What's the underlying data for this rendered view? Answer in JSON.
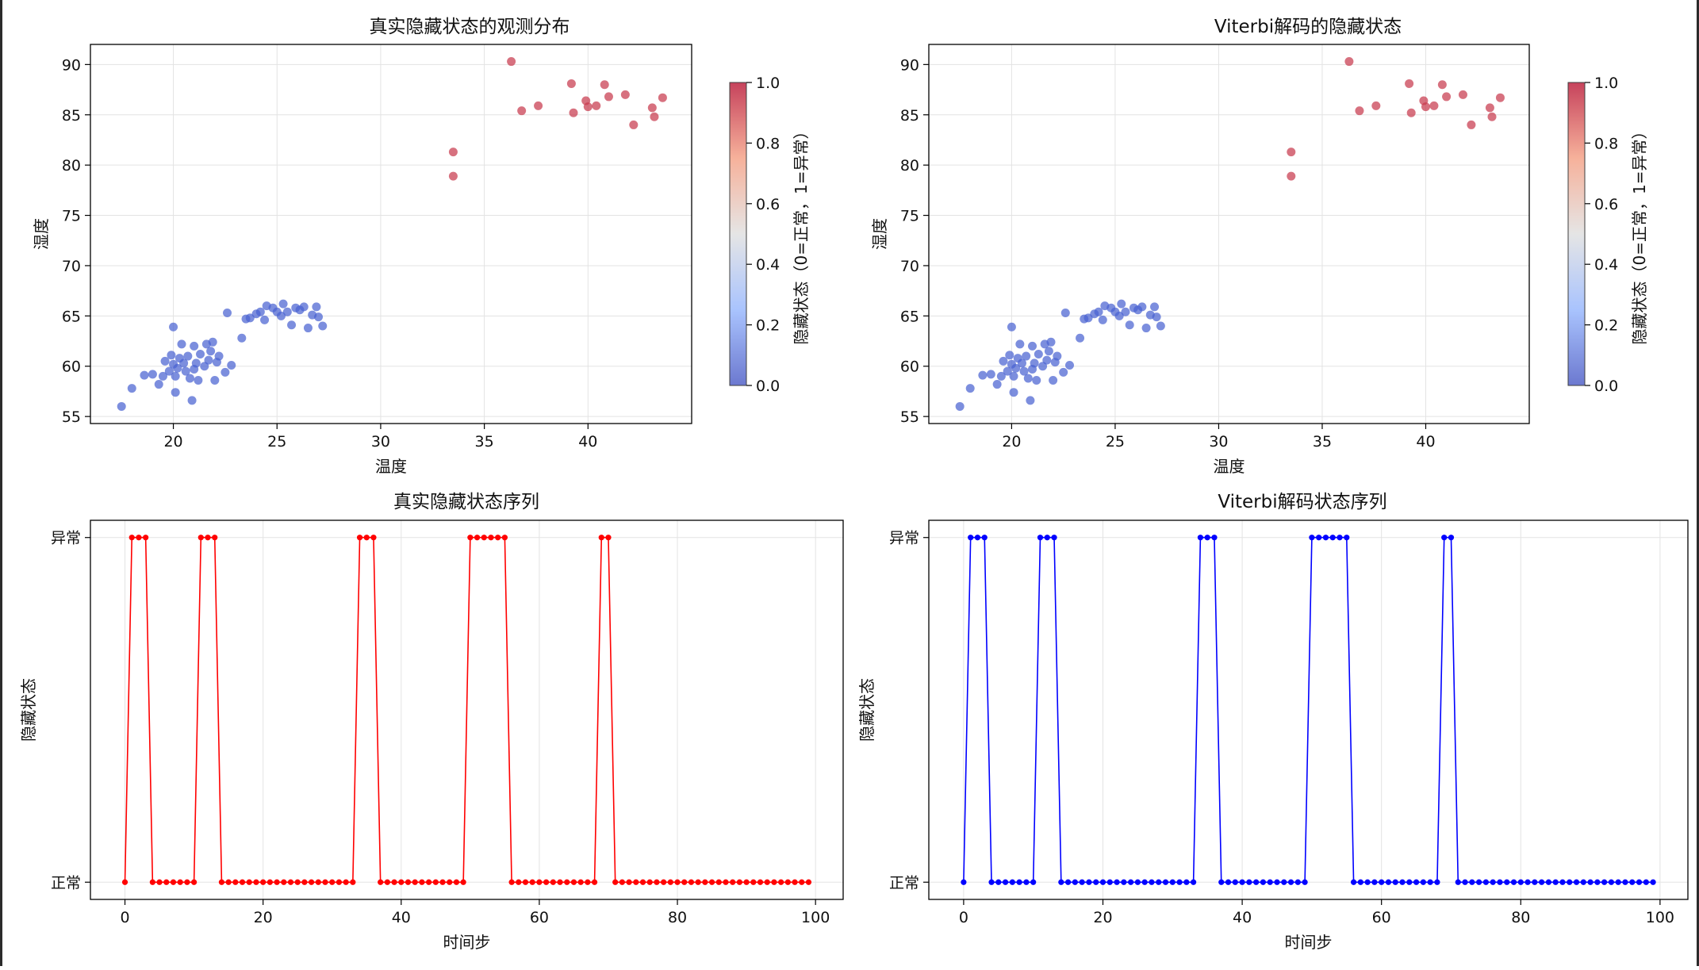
{
  "chart_data": [
    {
      "id": "scatter-true",
      "type": "scatter",
      "title": "真实隐藏状态的观测分布",
      "xlabel": "温度",
      "ylabel": "湿度",
      "xlim": [
        16,
        45
      ],
      "ylim": [
        54.3,
        92
      ],
      "xticks": [
        20,
        25,
        30,
        35,
        40
      ],
      "yticks": [
        55,
        60,
        65,
        70,
        75,
        80,
        85,
        90
      ],
      "grid": true,
      "colorbar": {
        "label": "隐藏状态（0=正常，1=异常）",
        "range": [
          0,
          1
        ],
        "ticks": [
          "0.0",
          "0.2",
          "0.4",
          "0.6",
          "0.8",
          "1.0"
        ]
      },
      "colors": {
        "normal": "#4a63d1",
        "abnormal": "#c73a4e"
      },
      "points": [
        {
          "x": 17.5,
          "y": 56.0,
          "s": 0
        },
        {
          "x": 18.0,
          "y": 57.8,
          "s": 0
        },
        {
          "x": 18.6,
          "y": 59.1,
          "s": 0
        },
        {
          "x": 19.0,
          "y": 59.2,
          "s": 0
        },
        {
          "x": 19.3,
          "y": 58.2,
          "s": 0
        },
        {
          "x": 19.5,
          "y": 59.0,
          "s": 0
        },
        {
          "x": 19.6,
          "y": 60.5,
          "s": 0
        },
        {
          "x": 19.8,
          "y": 59.5,
          "s": 0
        },
        {
          "x": 19.9,
          "y": 61.1,
          "s": 0
        },
        {
          "x": 20.0,
          "y": 63.9,
          "s": 0
        },
        {
          "x": 20.0,
          "y": 60.2,
          "s": 0
        },
        {
          "x": 20.1,
          "y": 59.0,
          "s": 0
        },
        {
          "x": 20.1,
          "y": 57.4,
          "s": 0
        },
        {
          "x": 20.2,
          "y": 59.8,
          "s": 0
        },
        {
          "x": 20.3,
          "y": 60.8,
          "s": 0
        },
        {
          "x": 20.4,
          "y": 62.2,
          "s": 0
        },
        {
          "x": 20.5,
          "y": 60.3,
          "s": 0
        },
        {
          "x": 20.6,
          "y": 59.5,
          "s": 0
        },
        {
          "x": 20.7,
          "y": 61.0,
          "s": 0
        },
        {
          "x": 20.8,
          "y": 58.8,
          "s": 0
        },
        {
          "x": 20.9,
          "y": 56.6,
          "s": 0
        },
        {
          "x": 21.0,
          "y": 59.7,
          "s": 0
        },
        {
          "x": 21.0,
          "y": 62.0,
          "s": 0
        },
        {
          "x": 21.1,
          "y": 60.3,
          "s": 0
        },
        {
          "x": 21.2,
          "y": 58.6,
          "s": 0
        },
        {
          "x": 21.3,
          "y": 61.2,
          "s": 0
        },
        {
          "x": 21.5,
          "y": 60.0,
          "s": 0
        },
        {
          "x": 21.6,
          "y": 62.2,
          "s": 0
        },
        {
          "x": 21.7,
          "y": 60.6,
          "s": 0
        },
        {
          "x": 21.8,
          "y": 61.5,
          "s": 0
        },
        {
          "x": 21.9,
          "y": 62.4,
          "s": 0
        },
        {
          "x": 22.0,
          "y": 58.6,
          "s": 0
        },
        {
          "x": 22.1,
          "y": 60.4,
          "s": 0
        },
        {
          "x": 22.2,
          "y": 61.0,
          "s": 0
        },
        {
          "x": 22.5,
          "y": 59.4,
          "s": 0
        },
        {
          "x": 22.6,
          "y": 65.3,
          "s": 0
        },
        {
          "x": 22.8,
          "y": 60.1,
          "s": 0
        },
        {
          "x": 23.3,
          "y": 62.8,
          "s": 0
        },
        {
          "x": 23.5,
          "y": 64.7,
          "s": 0
        },
        {
          "x": 23.7,
          "y": 64.8,
          "s": 0
        },
        {
          "x": 24.0,
          "y": 65.2,
          "s": 0
        },
        {
          "x": 24.2,
          "y": 65.4,
          "s": 0
        },
        {
          "x": 24.4,
          "y": 64.6,
          "s": 0
        },
        {
          "x": 24.5,
          "y": 66.0,
          "s": 0
        },
        {
          "x": 24.8,
          "y": 65.8,
          "s": 0
        },
        {
          "x": 25.0,
          "y": 65.4,
          "s": 0
        },
        {
          "x": 25.2,
          "y": 65.0,
          "s": 0
        },
        {
          "x": 25.3,
          "y": 66.2,
          "s": 0
        },
        {
          "x": 25.5,
          "y": 65.4,
          "s": 0
        },
        {
          "x": 25.7,
          "y": 64.1,
          "s": 0
        },
        {
          "x": 25.9,
          "y": 65.8,
          "s": 0
        },
        {
          "x": 26.1,
          "y": 65.6,
          "s": 0
        },
        {
          "x": 26.3,
          "y": 65.9,
          "s": 0
        },
        {
          "x": 26.5,
          "y": 63.8,
          "s": 0
        },
        {
          "x": 26.7,
          "y": 65.1,
          "s": 0
        },
        {
          "x": 26.9,
          "y": 65.9,
          "s": 0
        },
        {
          "x": 27.0,
          "y": 64.9,
          "s": 0
        },
        {
          "x": 27.2,
          "y": 64.0,
          "s": 0
        },
        {
          "x": 33.5,
          "y": 81.3,
          "s": 1
        },
        {
          "x": 33.5,
          "y": 78.9,
          "s": 1
        },
        {
          "x": 36.3,
          "y": 90.3,
          "s": 1
        },
        {
          "x": 36.8,
          "y": 85.4,
          "s": 1
        },
        {
          "x": 37.6,
          "y": 85.9,
          "s": 1
        },
        {
          "x": 39.2,
          "y": 88.1,
          "s": 1
        },
        {
          "x": 39.3,
          "y": 85.2,
          "s": 1
        },
        {
          "x": 39.9,
          "y": 86.4,
          "s": 1
        },
        {
          "x": 40.0,
          "y": 85.8,
          "s": 1
        },
        {
          "x": 40.4,
          "y": 85.9,
          "s": 1
        },
        {
          "x": 40.8,
          "y": 88.0,
          "s": 1
        },
        {
          "x": 41.0,
          "y": 86.8,
          "s": 1
        },
        {
          "x": 41.8,
          "y": 87.0,
          "s": 1
        },
        {
          "x": 42.2,
          "y": 84.0,
          "s": 1
        },
        {
          "x": 43.1,
          "y": 85.7,
          "s": 1
        },
        {
          "x": 43.2,
          "y": 84.8,
          "s": 1
        },
        {
          "x": 43.6,
          "y": 86.7,
          "s": 1
        }
      ]
    },
    {
      "id": "scatter-viterbi",
      "type": "scatter",
      "title": "Viterbi解码的隐藏状态",
      "xlabel": "温度",
      "ylabel": "湿度",
      "xlim": [
        16,
        45
      ],
      "ylim": [
        54.3,
        92
      ],
      "xticks": [
        20,
        25,
        30,
        35,
        40
      ],
      "yticks": [
        55,
        60,
        65,
        70,
        75,
        80,
        85,
        90
      ],
      "grid": true,
      "colorbar": {
        "label": "隐藏状态（0=正常，1=异常）",
        "range": [
          0,
          1
        ],
        "ticks": [
          "0.0",
          "0.2",
          "0.4",
          "0.6",
          "0.8",
          "1.0"
        ]
      },
      "colors": {
        "normal": "#4a63d1",
        "abnormal": "#c73a4e"
      },
      "points": [
        {
          "x": 17.5,
          "y": 56.0,
          "s": 0
        },
        {
          "x": 18.0,
          "y": 57.8,
          "s": 0
        },
        {
          "x": 18.6,
          "y": 59.1,
          "s": 0
        },
        {
          "x": 19.0,
          "y": 59.2,
          "s": 0
        },
        {
          "x": 19.3,
          "y": 58.2,
          "s": 0
        },
        {
          "x": 19.5,
          "y": 59.0,
          "s": 0
        },
        {
          "x": 19.6,
          "y": 60.5,
          "s": 0
        },
        {
          "x": 19.8,
          "y": 59.5,
          "s": 0
        },
        {
          "x": 19.9,
          "y": 61.1,
          "s": 0
        },
        {
          "x": 20.0,
          "y": 63.9,
          "s": 0
        },
        {
          "x": 20.0,
          "y": 60.2,
          "s": 0
        },
        {
          "x": 20.1,
          "y": 59.0,
          "s": 0
        },
        {
          "x": 20.1,
          "y": 57.4,
          "s": 0
        },
        {
          "x": 20.2,
          "y": 59.8,
          "s": 0
        },
        {
          "x": 20.3,
          "y": 60.8,
          "s": 0
        },
        {
          "x": 20.4,
          "y": 62.2,
          "s": 0
        },
        {
          "x": 20.5,
          "y": 60.3,
          "s": 0
        },
        {
          "x": 20.6,
          "y": 59.5,
          "s": 0
        },
        {
          "x": 20.7,
          "y": 61.0,
          "s": 0
        },
        {
          "x": 20.8,
          "y": 58.8,
          "s": 0
        },
        {
          "x": 20.9,
          "y": 56.6,
          "s": 0
        },
        {
          "x": 21.0,
          "y": 59.7,
          "s": 0
        },
        {
          "x": 21.0,
          "y": 62.0,
          "s": 0
        },
        {
          "x": 21.1,
          "y": 60.3,
          "s": 0
        },
        {
          "x": 21.2,
          "y": 58.6,
          "s": 0
        },
        {
          "x": 21.3,
          "y": 61.2,
          "s": 0
        },
        {
          "x": 21.5,
          "y": 60.0,
          "s": 0
        },
        {
          "x": 21.6,
          "y": 62.2,
          "s": 0
        },
        {
          "x": 21.7,
          "y": 60.6,
          "s": 0
        },
        {
          "x": 21.8,
          "y": 61.5,
          "s": 0
        },
        {
          "x": 21.9,
          "y": 62.4,
          "s": 0
        },
        {
          "x": 22.0,
          "y": 58.6,
          "s": 0
        },
        {
          "x": 22.1,
          "y": 60.4,
          "s": 0
        },
        {
          "x": 22.2,
          "y": 61.0,
          "s": 0
        },
        {
          "x": 22.5,
          "y": 59.4,
          "s": 0
        },
        {
          "x": 22.6,
          "y": 65.3,
          "s": 0
        },
        {
          "x": 22.8,
          "y": 60.1,
          "s": 0
        },
        {
          "x": 23.3,
          "y": 62.8,
          "s": 0
        },
        {
          "x": 23.5,
          "y": 64.7,
          "s": 0
        },
        {
          "x": 23.7,
          "y": 64.8,
          "s": 0
        },
        {
          "x": 24.0,
          "y": 65.2,
          "s": 0
        },
        {
          "x": 24.2,
          "y": 65.4,
          "s": 0
        },
        {
          "x": 24.4,
          "y": 64.6,
          "s": 0
        },
        {
          "x": 24.5,
          "y": 66.0,
          "s": 0
        },
        {
          "x": 24.8,
          "y": 65.8,
          "s": 0
        },
        {
          "x": 25.0,
          "y": 65.4,
          "s": 0
        },
        {
          "x": 25.2,
          "y": 65.0,
          "s": 0
        },
        {
          "x": 25.3,
          "y": 66.2,
          "s": 0
        },
        {
          "x": 25.5,
          "y": 65.4,
          "s": 0
        },
        {
          "x": 25.7,
          "y": 64.1,
          "s": 0
        },
        {
          "x": 25.9,
          "y": 65.8,
          "s": 0
        },
        {
          "x": 26.1,
          "y": 65.6,
          "s": 0
        },
        {
          "x": 26.3,
          "y": 65.9,
          "s": 0
        },
        {
          "x": 26.5,
          "y": 63.8,
          "s": 0
        },
        {
          "x": 26.7,
          "y": 65.1,
          "s": 0
        },
        {
          "x": 26.9,
          "y": 65.9,
          "s": 0
        },
        {
          "x": 27.0,
          "y": 64.9,
          "s": 0
        },
        {
          "x": 27.2,
          "y": 64.0,
          "s": 0
        },
        {
          "x": 33.5,
          "y": 81.3,
          "s": 1
        },
        {
          "x": 33.5,
          "y": 78.9,
          "s": 1
        },
        {
          "x": 36.3,
          "y": 90.3,
          "s": 1
        },
        {
          "x": 36.8,
          "y": 85.4,
          "s": 1
        },
        {
          "x": 37.6,
          "y": 85.9,
          "s": 1
        },
        {
          "x": 39.2,
          "y": 88.1,
          "s": 1
        },
        {
          "x": 39.3,
          "y": 85.2,
          "s": 1
        },
        {
          "x": 39.9,
          "y": 86.4,
          "s": 1
        },
        {
          "x": 40.0,
          "y": 85.8,
          "s": 1
        },
        {
          "x": 40.4,
          "y": 85.9,
          "s": 1
        },
        {
          "x": 40.8,
          "y": 88.0,
          "s": 1
        },
        {
          "x": 41.0,
          "y": 86.8,
          "s": 1
        },
        {
          "x": 41.8,
          "y": 87.0,
          "s": 1
        },
        {
          "x": 42.2,
          "y": 84.0,
          "s": 1
        },
        {
          "x": 43.1,
          "y": 85.7,
          "s": 1
        },
        {
          "x": 43.2,
          "y": 84.8,
          "s": 1
        },
        {
          "x": 43.6,
          "y": 86.7,
          "s": 1
        }
      ]
    },
    {
      "id": "seq-true",
      "type": "line",
      "title": "真实隐藏状态序列",
      "xlabel": "时间步",
      "ylabel": "隐藏状态",
      "xlim": [
        -5,
        104
      ],
      "ylim": [
        -0.05,
        1.05
      ],
      "xticks": [
        0,
        20,
        40,
        60,
        80,
        100
      ],
      "ytick_labels": [
        "正常",
        "异常"
      ],
      "grid": true,
      "color": "#ff0000",
      "x_start": 0,
      "values": [
        0,
        1,
        1,
        1,
        0,
        0,
        0,
        0,
        0,
        0,
        0,
        1,
        1,
        1,
        0,
        0,
        0,
        0,
        0,
        0,
        0,
        0,
        0,
        0,
        0,
        0,
        0,
        0,
        0,
        0,
        0,
        0,
        0,
        0,
        1,
        1,
        1,
        0,
        0,
        0,
        0,
        0,
        0,
        0,
        0,
        0,
        0,
        0,
        0,
        0,
        1,
        1,
        1,
        1,
        1,
        1,
        0,
        0,
        0,
        0,
        0,
        0,
        0,
        0,
        0,
        0,
        0,
        0,
        0,
        1,
        1,
        0,
        0,
        0,
        0,
        0,
        0,
        0,
        0,
        0,
        0,
        0,
        0,
        0,
        0,
        0,
        0,
        0,
        0,
        0,
        0,
        0,
        0,
        0,
        0,
        0,
        0,
        0,
        0,
        0
      ]
    },
    {
      "id": "seq-viterbi",
      "type": "line",
      "title": "Viterbi解码状态序列",
      "xlabel": "时间步",
      "ylabel": "隐藏状态",
      "xlim": [
        -5,
        104
      ],
      "ylim": [
        -0.05,
        1.05
      ],
      "xticks": [
        0,
        20,
        40,
        60,
        80,
        100
      ],
      "ytick_labels": [
        "正常",
        "异常"
      ],
      "grid": true,
      "color": "#0000ff",
      "x_start": 0,
      "values": [
        0,
        1,
        1,
        1,
        0,
        0,
        0,
        0,
        0,
        0,
        0,
        1,
        1,
        1,
        0,
        0,
        0,
        0,
        0,
        0,
        0,
        0,
        0,
        0,
        0,
        0,
        0,
        0,
        0,
        0,
        0,
        0,
        0,
        0,
        1,
        1,
        1,
        0,
        0,
        0,
        0,
        0,
        0,
        0,
        0,
        0,
        0,
        0,
        0,
        0,
        1,
        1,
        1,
        1,
        1,
        1,
        0,
        0,
        0,
        0,
        0,
        0,
        0,
        0,
        0,
        0,
        0,
        0,
        0,
        1,
        1,
        0,
        0,
        0,
        0,
        0,
        0,
        0,
        0,
        0,
        0,
        0,
        0,
        0,
        0,
        0,
        0,
        0,
        0,
        0,
        0,
        0,
        0,
        0,
        0,
        0,
        0,
        0,
        0,
        0
      ]
    }
  ]
}
